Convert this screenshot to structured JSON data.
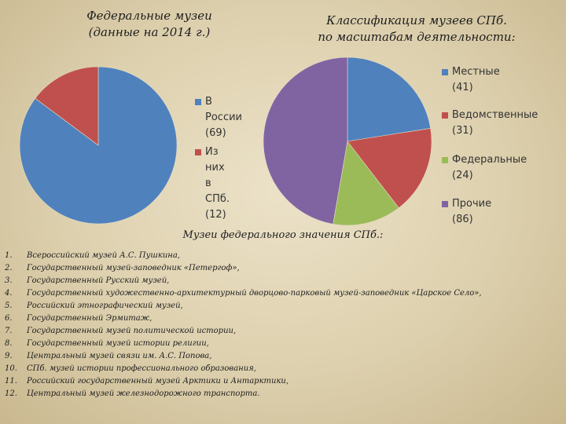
{
  "chart_data": [
    {
      "type": "pie",
      "title": [
        "Федеральные музеи",
        "(данные на 2014 г.)"
      ],
      "slices": [
        {
          "label": [
            "В России",
            "(69)"
          ],
          "value": 69,
          "color": "#4f81bd"
        },
        {
          "label": [
            "Из них в",
            "СПб. (12)"
          ],
          "value": 12,
          "color": "#c0504d"
        }
      ]
    },
    {
      "type": "pie",
      "title": [
        "Классификация музеев СПб.",
        "по масштабам деятельности:"
      ],
      "slices": [
        {
          "label": [
            "Местные (41)"
          ],
          "value": 41,
          "color": "#4f81bd"
        },
        {
          "label": [
            "Ведомственные",
            "(31)"
          ],
          "value": 31,
          "color": "#c0504d"
        },
        {
          "label": [
            "Федеральные",
            "(24)"
          ],
          "value": 24,
          "color": "#9bbb59"
        },
        {
          "label": [
            "Прочие (86)"
          ],
          "value": 86,
          "color": "#8064a2"
        }
      ]
    }
  ],
  "list": {
    "heading": "Музеи федерального значения СПб.:",
    "items": [
      {
        "num": "1.",
        "text": "Всероссийский музей А.С. Пушкина,"
      },
      {
        "num": "2.",
        "text": "Государственный музей-заповедник «Петергоф»,"
      },
      {
        "num": "3.",
        "text": "Государственный Русский музей,"
      },
      {
        "num": "4.",
        "text": "Государственный художественно-архитектурный дворцово-парковый музей-заповедник «Царское Село»,"
      },
      {
        "num": "5.",
        "text": "Российский этнографический музей,"
      },
      {
        "num": "6.",
        "text": "Государственный Эрмитаж,"
      },
      {
        "num": "7.",
        "text": "Государственный музей политической истории,"
      },
      {
        "num": "8.",
        "text": "Государственный музей истории религии,"
      },
      {
        "num": "9.",
        "text": "Центральный музей связи им. А.С. Попова,"
      },
      {
        "num": "10.",
        "text": "СПб. музей истории профессионального образования,"
      },
      {
        "num": "11.",
        "text": "Российский государственный музей Арктики и Антарктики,"
      },
      {
        "num": "12.",
        "text": "Центральный музей железнодорожного транспорта."
      }
    ]
  }
}
